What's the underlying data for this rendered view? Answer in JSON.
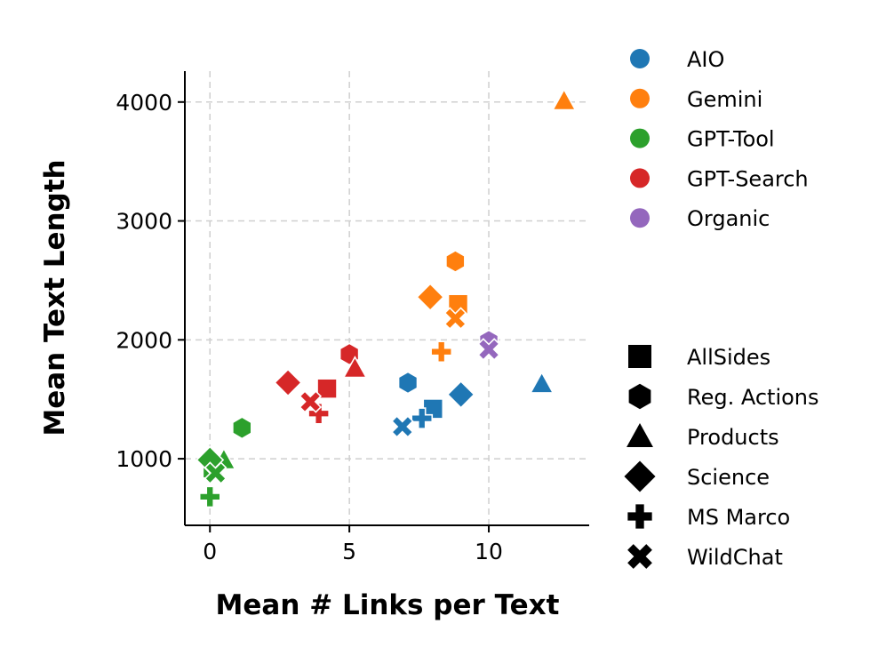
{
  "chart_data": {
    "type": "scatter",
    "xlabel": "Mean # Links per Text",
    "ylabel": "Mean Text Length",
    "xlim": [
      -0.9,
      13.6
    ],
    "ylim": [
      440,
      4260
    ],
    "xticks": [
      0,
      5,
      10
    ],
    "yticks": [
      1000,
      2000,
      3000,
      4000
    ],
    "grid": true,
    "legend_placement": "outside-right",
    "series": [
      {
        "name": "AIO",
        "color": "#1f77b4"
      },
      {
        "name": "Gemini",
        "color": "#ff7f0e"
      },
      {
        "name": "GPT-Tool",
        "color": "#2ca02c"
      },
      {
        "name": "GPT-Search",
        "color": "#d62728"
      },
      {
        "name": "Organic",
        "color": "#9467bd"
      }
    ],
    "datasets": [
      {
        "name": "AllSides",
        "marker": "square"
      },
      {
        "name": "Reg. Actions",
        "marker": "hexagon"
      },
      {
        "name": "Products",
        "marker": "triangle"
      },
      {
        "name": "Science",
        "marker": "diamond"
      },
      {
        "name": "MS Marco",
        "marker": "plus"
      },
      {
        "name": "WildChat",
        "marker": "x"
      }
    ],
    "points": [
      {
        "series": "AIO",
        "dataset": "AllSides",
        "x": 8.0,
        "y": 1420
      },
      {
        "series": "AIO",
        "dataset": "Reg. Actions",
        "x": 7.1,
        "y": 1640
      },
      {
        "series": "AIO",
        "dataset": "Products",
        "x": 11.9,
        "y": 1630
      },
      {
        "series": "AIO",
        "dataset": "Science",
        "x": 9.0,
        "y": 1540
      },
      {
        "series": "AIO",
        "dataset": "MS Marco",
        "x": 7.6,
        "y": 1340
      },
      {
        "series": "AIO",
        "dataset": "WildChat",
        "x": 6.9,
        "y": 1270
      },
      {
        "series": "Gemini",
        "dataset": "AllSides",
        "x": 8.9,
        "y": 2300
      },
      {
        "series": "Gemini",
        "dataset": "Reg. Actions",
        "x": 8.8,
        "y": 2660
      },
      {
        "series": "Gemini",
        "dataset": "Products",
        "x": 12.7,
        "y": 4010
      },
      {
        "series": "Gemini",
        "dataset": "Science",
        "x": 7.9,
        "y": 2360
      },
      {
        "series": "Gemini",
        "dataset": "MS Marco",
        "x": 8.3,
        "y": 1900
      },
      {
        "series": "Gemini",
        "dataset": "WildChat",
        "x": 8.8,
        "y": 2180
      },
      {
        "series": "GPT-Tool",
        "dataset": "AllSides",
        "x": 0.1,
        "y": 920
      },
      {
        "series": "GPT-Tool",
        "dataset": "Reg. Actions",
        "x": 1.15,
        "y": 1260
      },
      {
        "series": "GPT-Tool",
        "dataset": "Products",
        "x": 0.5,
        "y": 990
      },
      {
        "series": "GPT-Tool",
        "dataset": "Science",
        "x": 0.0,
        "y": 990
      },
      {
        "series": "GPT-Tool",
        "dataset": "MS Marco",
        "x": 0.0,
        "y": 680
      },
      {
        "series": "GPT-Tool",
        "dataset": "WildChat",
        "x": 0.2,
        "y": 880
      },
      {
        "series": "GPT-Search",
        "dataset": "AllSides",
        "x": 4.2,
        "y": 1590
      },
      {
        "series": "GPT-Search",
        "dataset": "Reg. Actions",
        "x": 5.0,
        "y": 1880
      },
      {
        "series": "GPT-Search",
        "dataset": "Products",
        "x": 5.2,
        "y": 1760
      },
      {
        "series": "GPT-Search",
        "dataset": "Science",
        "x": 2.8,
        "y": 1640
      },
      {
        "series": "GPT-Search",
        "dataset": "MS Marco",
        "x": 3.9,
        "y": 1380
      },
      {
        "series": "GPT-Search",
        "dataset": "WildChat",
        "x": 3.6,
        "y": 1480
      },
      {
        "series": "Organic",
        "dataset": "Reg. Actions",
        "x": 10.0,
        "y": 1990
      },
      {
        "series": "Organic",
        "dataset": "WildChat",
        "x": 10.0,
        "y": 1920
      }
    ]
  }
}
